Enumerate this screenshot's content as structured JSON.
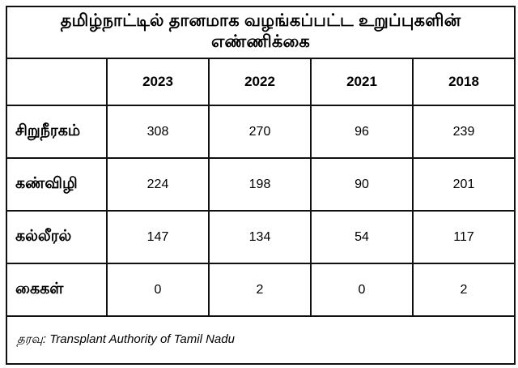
{
  "table": {
    "title": "தமிழ்நாட்டில் தானமாக வழங்கப்பட்ட உறுப்புகளின் எண்ணிக்கை",
    "columns": [
      "2023",
      "2022",
      "2021",
      "2018"
    ],
    "rows": [
      {
        "label": "சிறுநீரகம்",
        "values": [
          "308",
          "270",
          "96",
          "239"
        ]
      },
      {
        "label": "கண்விழி",
        "values": [
          "224",
          "198",
          "90",
          "201"
        ]
      },
      {
        "label": "கல்லீரல்",
        "values": [
          "147",
          "134",
          "54",
          "117"
        ]
      },
      {
        "label": "கைகள்",
        "values": [
          "0",
          "2",
          "0",
          "2"
        ]
      }
    ],
    "source": "தரவு: Transplant Authority of Tamil Nadu"
  },
  "chart_data": {
    "type": "table",
    "title": "தமிழ்நாட்டில் தானமாக வழங்கப்பட்ட உறுப்புகளின் எண்ணிக்கை",
    "categories": [
      "2023",
      "2022",
      "2021",
      "2018"
    ],
    "series": [
      {
        "name": "சிறுநீரகம்",
        "values": [
          308,
          270,
          96,
          239
        ]
      },
      {
        "name": "கண்விழி",
        "values": [
          224,
          198,
          90,
          201
        ]
      },
      {
        "name": "கல்லீரல்",
        "values": [
          147,
          134,
          54,
          117
        ]
      },
      {
        "name": "கைகள்",
        "values": [
          0,
          2,
          0,
          2
        ]
      }
    ],
    "source": "தரவு: Transplant Authority of Tamil Nadu",
    "layout": {
      "grid": "full-borders",
      "title_position": "top",
      "source_position": "bottom"
    }
  },
  "colors": {
    "border": "#111111",
    "text": "#000000",
    "background": "#ffffff"
  }
}
